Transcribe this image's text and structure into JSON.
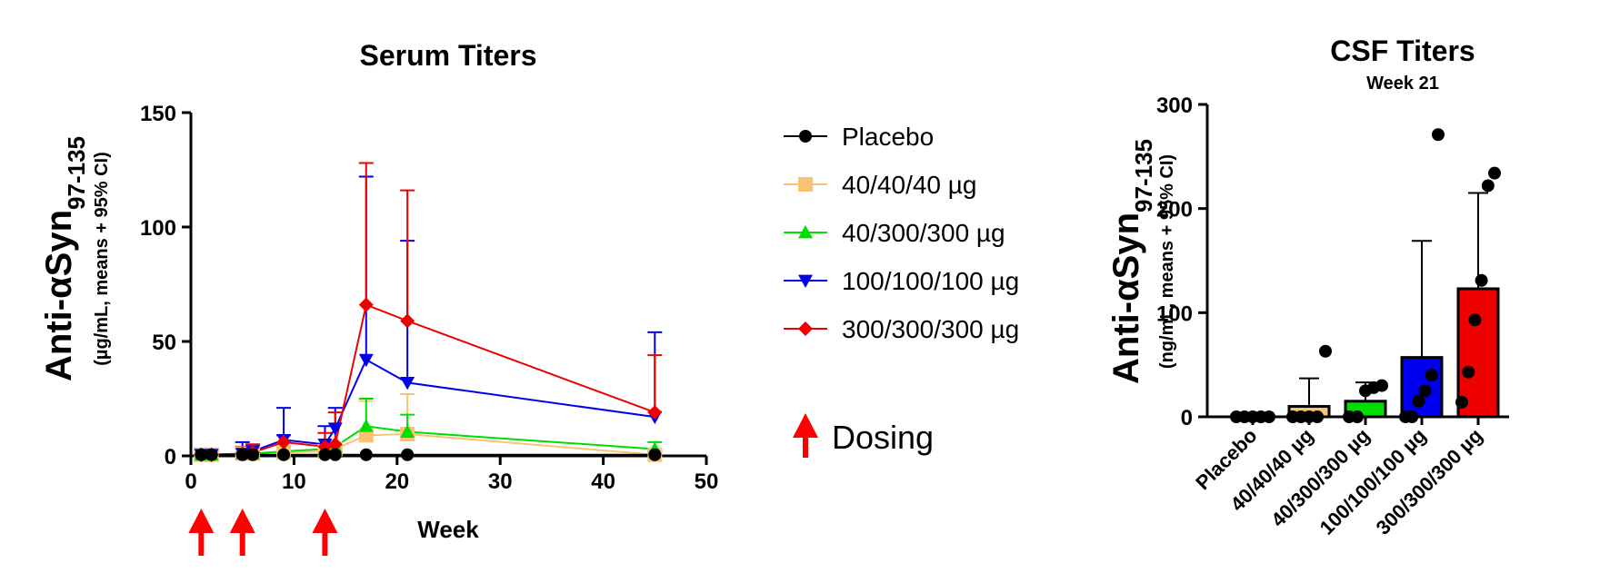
{
  "chart_data": [
    {
      "type": "line",
      "title": "Serum Titers",
      "xlabel": "Week",
      "ylabel": "Anti-αSyn97-135",
      "ylabel_main": "Anti-αSyn",
      "ylabel_sub": "97-135",
      "ylabel_units": "(µg/mL, means + 95% CI)",
      "xlim": [
        0,
        50
      ],
      "ylim": [
        0,
        150
      ],
      "xticks": [
        0,
        10,
        20,
        30,
        40,
        50
      ],
      "yticks": [
        0,
        50,
        100,
        150
      ],
      "legend_position": "right",
      "series": [
        {
          "name": "Placebo",
          "color": "#000000",
          "marker": "circle",
          "x": [
            1,
            2,
            5,
            6,
            9,
            13,
            14,
            17,
            21,
            45
          ],
          "y": [
            0.5,
            0.5,
            0.5,
            0.5,
            0.5,
            0.5,
            0.5,
            0.5,
            0.5,
            0.5
          ],
          "err_upper": [
            null,
            null,
            null,
            null,
            null,
            null,
            null,
            null,
            null,
            2
          ]
        },
        {
          "name": "40/40/40 µg",
          "color": "#F8C471",
          "marker": "square",
          "x": [
            1,
            2,
            5,
            6,
            9,
            13,
            14,
            17,
            21,
            45
          ],
          "y": [
            0.5,
            0.5,
            1,
            1,
            1.5,
            2,
            3,
            9,
            9.5,
            0.5
          ],
          "err_upper": [
            null,
            null,
            null,
            null,
            null,
            null,
            null,
            24,
            27,
            null
          ]
        },
        {
          "name": "40/300/300 µg",
          "color": "#00DD00",
          "marker": "triangle-up",
          "x": [
            1,
            2,
            5,
            6,
            9,
            13,
            14,
            17,
            21,
            45
          ],
          "y": [
            0.5,
            0.5,
            1,
            1,
            2,
            3,
            4,
            13,
            10.5,
            3
          ],
          "err_upper": [
            null,
            null,
            null,
            null,
            null,
            null,
            null,
            25,
            18,
            6
          ]
        },
        {
          "name": "100/100/100 µg",
          "color": "#0000EE",
          "marker": "triangle-down",
          "x": [
            1,
            2,
            5,
            6,
            9,
            13,
            14,
            17,
            21,
            45
          ],
          "y": [
            0.5,
            0.5,
            1,
            2,
            7,
            5,
            12,
            42,
            32,
            17
          ],
          "err_upper": [
            null,
            null,
            6,
            5,
            21,
            13,
            21,
            122,
            94,
            54
          ]
        },
        {
          "name": "300/300/300 µg",
          "color": "#EE0000",
          "marker": "diamond",
          "x": [
            1,
            2,
            5,
            6,
            9,
            13,
            14,
            17,
            21,
            45
          ],
          "y": [
            0.5,
            0.5,
            1,
            1.5,
            6,
            4,
            5,
            66,
            59,
            19
          ],
          "err_upper": [
            null,
            null,
            4,
            5,
            9,
            10,
            19,
            128,
            116,
            44
          ]
        }
      ],
      "dosing_weeks": [
        1,
        5,
        13
      ],
      "dosing_label": "Dosing",
      "dosing_color": "#FF0000"
    },
    {
      "type": "bar",
      "title": "CSF Titers",
      "subtitle": "Week 21",
      "ylabel": "Anti-αSyn97-135",
      "ylabel_main": "Anti-αSyn",
      "ylabel_sub": "97-135",
      "ylabel_units": "(ng/mL, means + 95% CI)",
      "ylim": [
        0,
        300
      ],
      "yticks": [
        0,
        100,
        200,
        300
      ],
      "categories": [
        "Placebo",
        "40/40/40 µg",
        "40/300/300 µg",
        "100/100/100 µg",
        "300/300/300 µg"
      ],
      "values": [
        0,
        10,
        15,
        57,
        123
      ],
      "err_upper": [
        0,
        37,
        33,
        169,
        215
      ],
      "colors": [
        "#000000",
        "#F8C471",
        "#00DD00",
        "#0000EE",
        "#EE0000"
      ],
      "points": [
        [
          0,
          0,
          0,
          0,
          0
        ],
        [
          0,
          0,
          0,
          0,
          63
        ],
        [
          0,
          0,
          25,
          28,
          30
        ],
        [
          0,
          0,
          15,
          25,
          40,
          271
        ],
        [
          14,
          43,
          93,
          131,
          222,
          234
        ]
      ]
    }
  ]
}
